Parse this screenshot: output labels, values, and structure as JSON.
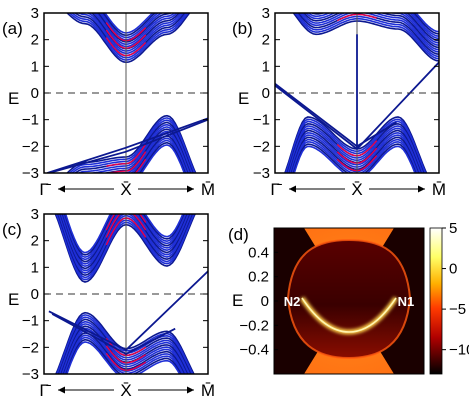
{
  "figure": {
    "colors": {
      "band": "#1f2fd6",
      "band_dark": "#0c1890",
      "accent": "#e8004a",
      "axis": "#000000",
      "dashed": "#333333",
      "centerline": "#555555"
    },
    "colorbar": {
      "ticks": [
        {
          "value": 5,
          "label": "5"
        },
        {
          "value": 0,
          "label": "0"
        },
        {
          "value": -5,
          "label": "−5"
        },
        {
          "value": -10,
          "label": "−10"
        }
      ],
      "range": [
        -13,
        5
      ],
      "colormap": "hot"
    }
  },
  "chart_data": [
    {
      "type": "line",
      "panel_label": "(a)",
      "ylabel": "E",
      "ylim": [
        -3,
        3
      ],
      "yticks": [
        {
          "value": 3,
          "label": "3"
        },
        {
          "value": 2,
          "label": "2"
        },
        {
          "value": 1,
          "label": "1"
        },
        {
          "value": 0,
          "label": "0"
        },
        {
          "value": -1,
          "label": "−1"
        },
        {
          "value": -2,
          "label": "−2"
        },
        {
          "value": -3,
          "label": "−3"
        }
      ],
      "xticks": [
        "Γ̄",
        "X̄",
        "M̄"
      ],
      "zero_line": "dashed",
      "series": [
        {
          "role": "bulk-conduction",
          "profile": [
            [
              0,
              3.6
            ],
            [
              0.25,
              2.6
            ],
            [
              0.5,
              1.15
            ],
            [
              0.75,
              2.2
            ],
            [
              1,
              3.6
            ]
          ],
          "count": 14,
          "spread": 1.1
        },
        {
          "role": "bulk-valence",
          "profile": [
            [
              0,
              -3.6
            ],
            [
              0.25,
              -2.6
            ],
            [
              0.5,
              -2.4
            ],
            [
              0.75,
              -0.85
            ],
            [
              1,
              -3.6
            ]
          ],
          "count": 14,
          "spread": 1.1
        },
        {
          "role": "surface-state",
          "points": [
            [
              0.02,
              -3.0
            ],
            [
              0.5,
              -2.05
            ],
            [
              1.0,
              -0.95
            ]
          ]
        },
        {
          "role": "surface-state",
          "points": [
            [
              0.03,
              -3.0
            ],
            [
              0.5,
              -2.2
            ],
            [
              1.0,
              -1.0
            ]
          ]
        }
      ]
    },
    {
      "type": "line",
      "panel_label": "(b)",
      "ylabel": "E",
      "ylim": [
        -3,
        3
      ],
      "yticks": [
        {
          "value": 3,
          "label": "3"
        },
        {
          "value": 2,
          "label": "2"
        },
        {
          "value": 1,
          "label": "1"
        },
        {
          "value": 0,
          "label": "0"
        },
        {
          "value": -1,
          "label": "−1"
        },
        {
          "value": -2,
          "label": "−2"
        },
        {
          "value": -3,
          "label": "−3"
        }
      ],
      "xticks": [
        "Γ̄",
        "X̄",
        "M̄"
      ],
      "zero_line": "dashed",
      "series": [
        {
          "role": "bulk-conduction",
          "profile": [
            [
              0,
              3.6
            ],
            [
              0.25,
              2.2
            ],
            [
              0.5,
              2.7
            ],
            [
              0.75,
              2.4
            ],
            [
              1,
              1.2
            ]
          ],
          "count": 14,
          "spread": 1.1
        },
        {
          "role": "bulk-valence",
          "profile": [
            [
              0,
              -3.6
            ],
            [
              0.2,
              -0.9
            ],
            [
              0.5,
              -2.1
            ],
            [
              0.75,
              -0.9
            ],
            [
              1,
              -3.6
            ]
          ],
          "count": 14,
          "spread": 1.1
        },
        {
          "role": "surface-state",
          "points": [
            [
              0.0,
              0.28
            ],
            [
              0.5,
              -2.1
            ],
            [
              1.0,
              1.15
            ]
          ]
        },
        {
          "role": "surface-state",
          "points": [
            [
              0.0,
              0.35
            ],
            [
              0.5,
              -2.0
            ],
            [
              0.74,
              -1.1
            ]
          ]
        },
        {
          "role": "surface-state",
          "points": [
            [
              0.5,
              2.2
            ],
            [
              0.5,
              -2.1
            ]
          ]
        }
      ]
    },
    {
      "type": "line",
      "panel_label": "(c)",
      "ylabel": "E",
      "ylim": [
        -3,
        3
      ],
      "yticks": [
        {
          "value": 3,
          "label": "3"
        },
        {
          "value": 2,
          "label": "2"
        },
        {
          "value": 1,
          "label": "1"
        },
        {
          "value": 0,
          "label": "0"
        },
        {
          "value": -1,
          "label": "−1"
        },
        {
          "value": -2,
          "label": "−2"
        },
        {
          "value": -3,
          "label": "−3"
        }
      ],
      "xticks": [
        "Γ̄",
        "X̄",
        "M̄"
      ],
      "zero_line": "dashed",
      "series": [
        {
          "role": "bulk-conduction",
          "profile": [
            [
              0,
              3.6
            ],
            [
              0.25,
              0.45
            ],
            [
              0.5,
              2.6
            ],
            [
              0.75,
              1.05
            ],
            [
              1,
              3.6
            ]
          ],
          "count": 14,
          "spread": 1.1
        },
        {
          "role": "bulk-valence",
          "profile": [
            [
              0,
              -3.6
            ],
            [
              0.25,
              -0.7
            ],
            [
              0.5,
              -2.05
            ],
            [
              0.75,
              -1.4
            ],
            [
              1,
              -3.6
            ]
          ],
          "count": 14,
          "spread": 1.1
        },
        {
          "role": "surface-state",
          "points": [
            [
              0.03,
              -0.65
            ],
            [
              0.5,
              -2.1
            ],
            [
              1.0,
              0.85
            ]
          ]
        },
        {
          "role": "surface-state",
          "points": [
            [
              0.05,
              -0.75
            ],
            [
              0.5,
              -2.25
            ],
            [
              0.8,
              -1.3
            ]
          ]
        }
      ]
    },
    {
      "type": "heatmap",
      "panel_label": "(d)",
      "ylabel": "E",
      "ylim": [
        -0.6,
        0.6
      ],
      "yticks": [
        {
          "value": 0.4,
          "label": "0.4"
        },
        {
          "value": 0.2,
          "label": "0.2"
        },
        {
          "value": 0,
          "label": "0"
        },
        {
          "value": -0.2,
          "label": "−0.2"
        },
        {
          "value": -0.4,
          "label": "−0.4"
        }
      ],
      "annotations": [
        {
          "text": "N2",
          "x": -1,
          "y": 0
        },
        {
          "text": "N1",
          "x": 1,
          "y": 0
        }
      ]
    }
  ]
}
